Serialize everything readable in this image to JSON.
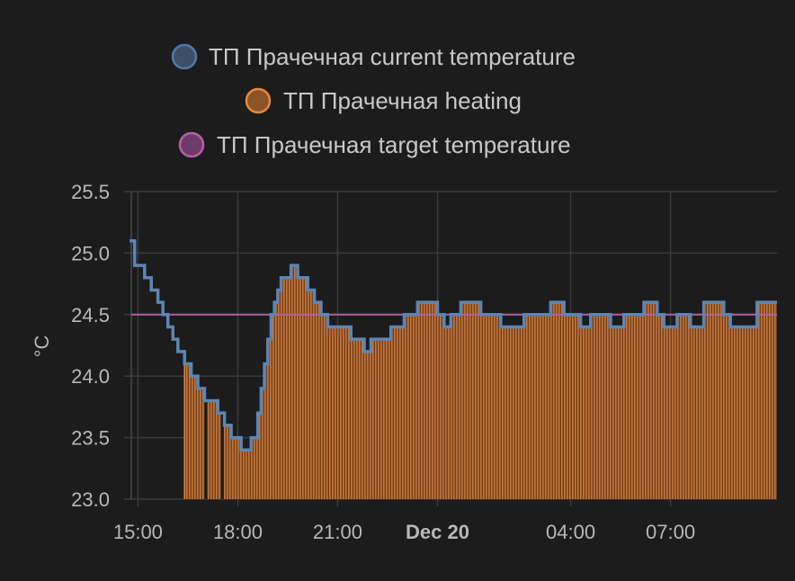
{
  "chart_data": {
    "type": "line",
    "legend": [
      {
        "name": "ТП Прачечная current temperature",
        "color": "#4e79a7",
        "fill": "#3d4f68"
      },
      {
        "name": "ТП Прачечная heating",
        "color": "#e8893c",
        "fill": "#8a5427"
      },
      {
        "name": "ТП Прачечная target temperature",
        "color": "#b25fa8",
        "fill": "#6e3b69"
      }
    ],
    "legend_position": "top",
    "ylabel": "°C",
    "ylim": [
      23.0,
      25.5
    ],
    "yticks": [
      "25.5",
      "25.0",
      "24.5",
      "24.0",
      "23.5",
      "23.0"
    ],
    "xrange_hours": [
      14.8,
      34.2
    ],
    "xticks": [
      {
        "label": "15:00",
        "hour": 15,
        "bold": false
      },
      {
        "label": "18:00",
        "hour": 18,
        "bold": false
      },
      {
        "label": "21:00",
        "hour": 21,
        "bold": false
      },
      {
        "label": "Dec 20",
        "hour": 24,
        "bold": true
      },
      {
        "label": "04:00",
        "hour": 28,
        "bold": false
      },
      {
        "label": "07:00",
        "hour": 31,
        "bold": false
      }
    ],
    "grid": true,
    "series": [
      {
        "name": "ТП Прачечная current temperature",
        "step": true,
        "x": [
          14.75,
          14.9,
          15.2,
          15.4,
          15.6,
          15.75,
          15.9,
          16.05,
          16.2,
          16.4,
          16.6,
          16.8,
          17.0,
          17.4,
          17.6,
          17.8,
          18.1,
          18.4,
          18.6,
          18.7,
          18.8,
          18.9,
          19.0,
          19.1,
          19.2,
          19.3,
          19.6,
          19.8,
          19.95,
          20.1,
          20.3,
          20.5,
          20.7,
          21.0,
          21.4,
          21.6,
          21.8,
          22.0,
          22.6,
          23.0,
          23.4,
          23.8,
          24.0,
          24.2,
          24.4,
          24.7,
          25.0,
          25.3,
          25.9,
          26.2,
          26.6,
          27.4,
          27.8,
          28.3,
          28.6,
          29.2,
          29.6,
          30.2,
          30.6,
          30.8,
          31.2,
          31.6,
          32.0,
          32.6,
          32.8,
          33.2,
          33.6,
          34.2
        ],
        "values": [
          25.1,
          24.9,
          24.8,
          24.7,
          24.6,
          24.5,
          24.4,
          24.3,
          24.2,
          24.1,
          24.0,
          23.9,
          23.8,
          23.7,
          23.6,
          23.5,
          23.4,
          23.5,
          23.7,
          23.9,
          24.1,
          24.3,
          24.5,
          24.6,
          24.7,
          24.8,
          24.9,
          24.8,
          24.8,
          24.7,
          24.6,
          24.5,
          24.4,
          24.4,
          24.3,
          24.3,
          24.2,
          24.3,
          24.4,
          24.5,
          24.6,
          24.6,
          24.5,
          24.4,
          24.5,
          24.6,
          24.6,
          24.5,
          24.4,
          24.4,
          24.5,
          24.6,
          24.5,
          24.4,
          24.5,
          24.4,
          24.5,
          24.6,
          24.5,
          24.4,
          24.5,
          24.4,
          24.6,
          24.5,
          24.4,
          24.4,
          24.6,
          24.6
        ]
      },
      {
        "name": "ТП Прачечная heating",
        "intervals": [
          [
            16.4,
            34.2
          ]
        ],
        "gaps": [
          [
            17.0,
            17.05
          ],
          [
            17.5,
            17.55
          ]
        ],
        "start_solid": 17.85
      },
      {
        "name": "ТП Прачечная target temperature",
        "x": [
          14.8,
          34.2
        ],
        "values": [
          24.5,
          24.5
        ]
      }
    ]
  }
}
